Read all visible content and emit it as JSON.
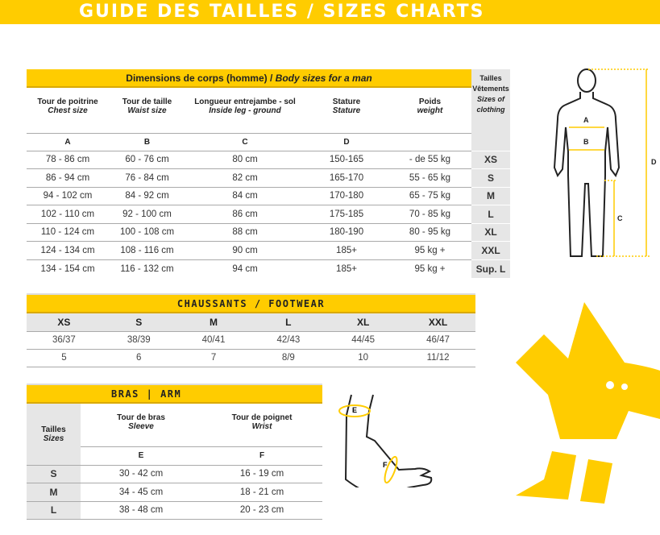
{
  "banner": {
    "title": "GUIDE DES TAILLES / SIZES CHARTS"
  },
  "body_table": {
    "title_fr": "Dimensions de corps (homme) / ",
    "title_en": "Body sizes for a man",
    "size_header": {
      "fr1": "Tailles",
      "fr2": "Vêtements",
      "en": "Sizes of clothing"
    },
    "columns": [
      {
        "fr": "Tour de poitrine",
        "en": "Chest size",
        "letter": "A"
      },
      {
        "fr": "Tour de taille",
        "en": "Waist size",
        "letter": "B"
      },
      {
        "fr": "Longueur entrejambe - sol",
        "en": "Inside leg - ground",
        "letter": "C"
      },
      {
        "fr": "Stature",
        "en": "Stature",
        "letter": "D"
      },
      {
        "fr": "Poids",
        "en": "weight",
        "letter": ""
      }
    ],
    "rows": [
      {
        "c": [
          "78 - 86 cm",
          "60 - 76 cm",
          "80 cm",
          "150-165",
          "- de 55 kg"
        ],
        "size": "XS"
      },
      {
        "c": [
          "86 - 94 cm",
          "76 - 84 cm",
          "82 cm",
          "165-170",
          "55 - 65 kg"
        ],
        "size": "S"
      },
      {
        "c": [
          "94 - 102 cm",
          "84 - 92 cm",
          "84 cm",
          "170-180",
          "65 - 75 kg"
        ],
        "size": "M"
      },
      {
        "c": [
          "102 - 110 cm",
          "92 - 100 cm",
          "86 cm",
          "175-185",
          "70 - 85 kg"
        ],
        "size": "L"
      },
      {
        "c": [
          "110 - 124 cm",
          "100 - 108 cm",
          "88 cm",
          "180-190",
          "80 - 95 kg"
        ],
        "size": "XL"
      },
      {
        "c": [
          "124 - 134 cm",
          "108 - 116 cm",
          "90 cm",
          "185+",
          "95 kg +"
        ],
        "size": "XXL"
      },
      {
        "c": [
          "134 - 154 cm",
          "116 - 132 cm",
          "94 cm",
          "185+",
          "95 kg +"
        ],
        "size": "Sup. L"
      }
    ]
  },
  "footwear": {
    "title": "CHAUSSANTS / FOOTWEAR",
    "sizes": [
      "XS",
      "S",
      "M",
      "L",
      "XL",
      "XXL"
    ],
    "rows": [
      [
        "36/37",
        "38/39",
        "40/41",
        "42/43",
        "44/45",
        "46/47"
      ],
      [
        "5",
        "6",
        "7",
        "8/9",
        "10",
        "11/12"
      ]
    ]
  },
  "arm": {
    "title": "BRAS | ARM",
    "size_fr": "Tailles",
    "size_en": "Sizes",
    "columns": [
      {
        "fr": "Tour de bras",
        "en": "Sleeve",
        "letter": "E"
      },
      {
        "fr": "Tour de poignet",
        "en": "Wrist",
        "letter": "F"
      }
    ],
    "rows": [
      {
        "size": "S",
        "c": [
          "30 - 42 cm",
          "16 - 19 cm"
        ]
      },
      {
        "size": "M",
        "c": [
          "34 - 45 cm",
          "18 - 21 cm"
        ]
      },
      {
        "size": "L",
        "c": [
          "38 - 48 cm",
          "20 - 23 cm"
        ]
      }
    ]
  },
  "figure_labels": {
    "a": "A",
    "b": "B",
    "c": "C",
    "d": "D",
    "e": "E",
    "f": "F"
  },
  "colors": {
    "accent": "#FFCC00",
    "size_col": "#e6e6e6"
  }
}
